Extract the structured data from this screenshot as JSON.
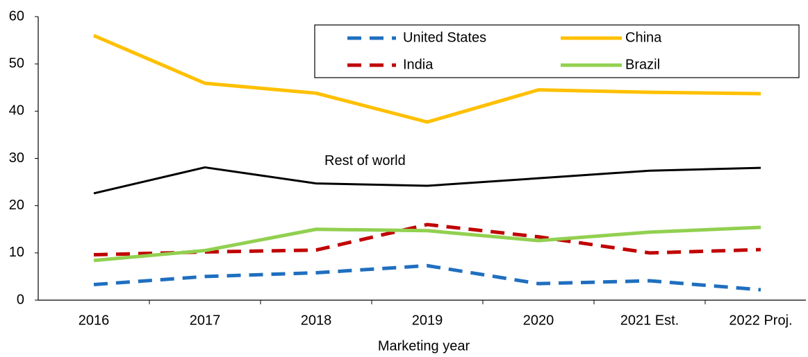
{
  "chart_data": {
    "type": "line",
    "x_label": "Marketing year",
    "categories": [
      "2016",
      "2017",
      "2018",
      "2019",
      "2020",
      "2021 Est.",
      "2022 Proj."
    ],
    "series": [
      {
        "name": "United States",
        "color": "#1f6fbf",
        "dashed": true,
        "in_legend": true,
        "values": [
          3.3,
          5.0,
          5.8,
          7.3,
          3.5,
          4.1,
          2.2
        ]
      },
      {
        "name": "China",
        "color": "#ffc000",
        "dashed": false,
        "in_legend": true,
        "values": [
          56.0,
          45.9,
          43.8,
          37.7,
          44.5,
          44.0,
          43.7
        ]
      },
      {
        "name": "India",
        "color": "#c00000",
        "dashed": true,
        "in_legend": true,
        "values": [
          9.6,
          10.2,
          10.6,
          16.0,
          13.4,
          10.0,
          10.7
        ]
      },
      {
        "name": "Brazil",
        "color": "#92d050",
        "dashed": false,
        "in_legend": true,
        "values": [
          8.4,
          10.5,
          15.0,
          14.7,
          12.6,
          14.4,
          15.4
        ]
      },
      {
        "name": "Rest of world",
        "color": "#000000",
        "dashed": false,
        "in_legend": false,
        "values": [
          22.6,
          28.1,
          24.7,
          24.2,
          25.8,
          27.4,
          28.0
        ]
      }
    ],
    "ylim": [
      0,
      60
    ],
    "yticks": [
      0,
      10,
      20,
      30,
      40,
      50,
      60
    ],
    "grid": false,
    "legend_position": "top-right"
  }
}
